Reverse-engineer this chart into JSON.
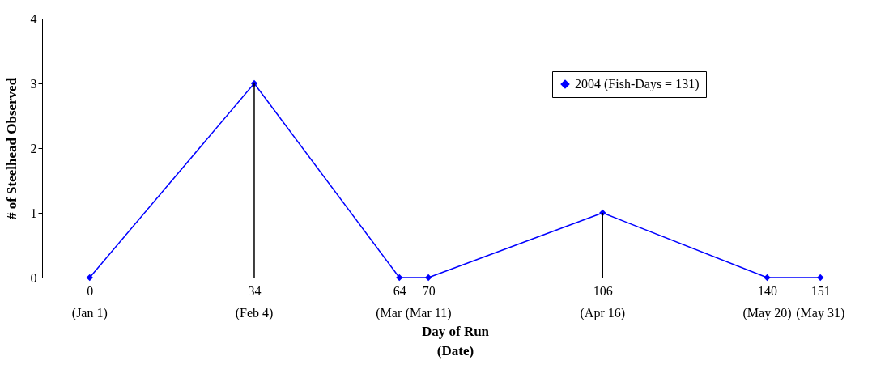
{
  "chart_data": {
    "type": "line",
    "xlabel": "Day of Run\n(Date)",
    "ylabel": "# of Steelhead Observed",
    "x": [
      0,
      34,
      64,
      70,
      106,
      140,
      151
    ],
    "series": [
      {
        "type": "bar",
        "color": "#000000",
        "values": [
          null,
          3,
          null,
          null,
          1,
          null,
          null
        ]
      },
      {
        "name": "2004 (Fish-Days = 131)",
        "color": "#0000ff",
        "values": [
          0,
          3,
          0,
          0,
          1,
          0,
          0
        ]
      }
    ],
    "xlim": [
      -9,
      160
    ],
    "xticks": [
      0,
      34,
      64,
      70,
      106,
      140,
      151
    ],
    "annotations": [
      "(Jan 1)",
      "(Feb 4)",
      "(Mar",
      "(Mar 11)",
      "(Apr 16)",
      "(May 20)",
      "(May 31)"
    ],
    "ylim": [
      0,
      4
    ],
    "yticks": [
      0,
      1,
      2,
      3,
      4
    ],
    "grid": false,
    "legend": "top right",
    "marker": "diamond",
    "line_style": "solid"
  }
}
